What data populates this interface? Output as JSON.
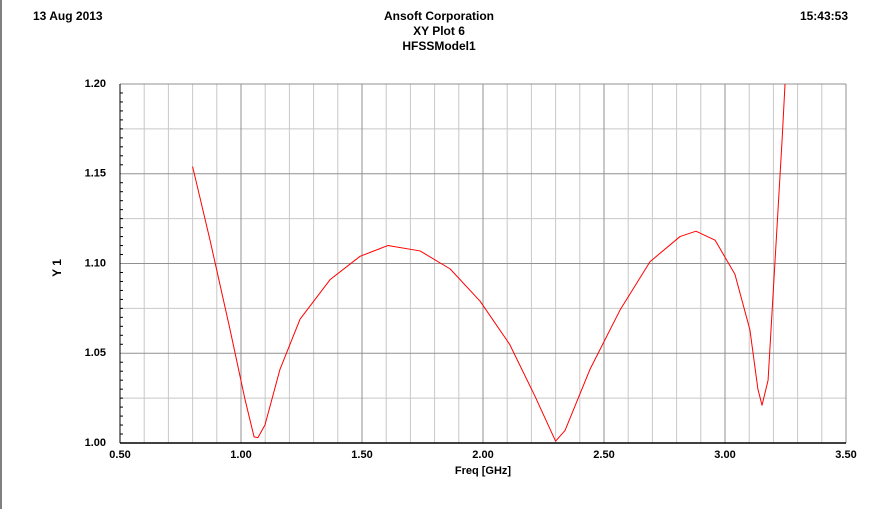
{
  "chart_data": {
    "type": "line",
    "date": "13 Aug 2013",
    "time": "15:43:53",
    "title": "Ansoft Corporation",
    "subtitle": "XY Plot 6",
    "design": "HFSSModel1",
    "xlabel": "Freq [GHz]",
    "ylabel": "Y 1",
    "x": [
      0.8,
      0.872,
      0.955,
      1.017,
      1.054,
      1.07,
      1.099,
      1.161,
      1.244,
      1.368,
      1.492,
      1.607,
      1.74,
      1.864,
      1.988,
      2.11,
      2.215,
      2.3,
      2.339,
      2.442,
      2.566,
      2.69,
      2.814,
      2.88,
      2.959,
      3.041,
      3.103,
      3.136,
      3.153,
      3.178,
      3.207,
      3.236,
      3.248
    ],
    "values": [
      1.154,
      1.113,
      1.063,
      1.024,
      1.0034,
      1.003,
      1.01,
      1.041,
      1.069,
      1.091,
      1.104,
      1.11,
      1.107,
      1.097,
      1.079,
      1.055,
      1.026,
      1.001,
      1.007,
      1.041,
      1.074,
      1.101,
      1.115,
      1.118,
      1.113,
      1.094,
      1.063,
      1.03,
      1.021,
      1.035,
      1.102,
      1.169,
      1.2
    ],
    "color": "#ff0000",
    "xlim": [
      0.5,
      3.5
    ],
    "xticks": [
      {
        "value": 0.5,
        "label": "0.50"
      },
      {
        "value": 1,
        "label": "1.00"
      },
      {
        "value": 1.5,
        "label": "1.50"
      },
      {
        "value": 2,
        "label": "2.00"
      },
      {
        "value": 2.5,
        "label": "2.50"
      },
      {
        "value": 3,
        "label": "3.00"
      },
      {
        "value": 3.5,
        "label": "3.50"
      }
    ],
    "ylim": [
      1.0,
      1.2
    ],
    "yticks": [
      {
        "value": 1.0,
        "label": "1.00"
      },
      {
        "value": 1.05,
        "label": "1.05"
      },
      {
        "value": 1.1,
        "label": "1.10"
      },
      {
        "value": 1.15,
        "label": "1.15"
      },
      {
        "value": 1.2,
        "label": "1.20"
      }
    ],
    "grid": true
  }
}
